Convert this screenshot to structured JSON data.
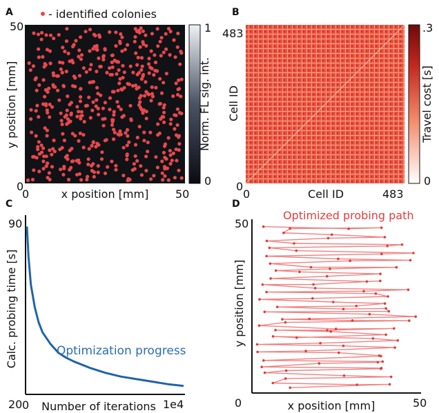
{
  "figure": {
    "panel_a": {
      "letter": "A",
      "legend": "- identified colonies",
      "xlabel": "x position [mm]",
      "ylabel": "y position [mm]",
      "x_ticks": [
        "0",
        "50"
      ],
      "y_ticks": [
        "50",
        "0"
      ],
      "colorbar_label": "Norm. FL sig. int.",
      "colorbar_ticks": [
        "1",
        "0"
      ]
    },
    "panel_b": {
      "letter": "B",
      "xlabel": "Cell ID",
      "ylabel": "Cell ID",
      "x_ticks": [
        "0",
        "483"
      ],
      "y_ticks": [
        "483",
        "0"
      ],
      "colorbar_label": "Travel cost [s]",
      "colorbar_ticks": [
        ".3",
        "0"
      ]
    },
    "panel_c": {
      "letter": "C",
      "ylabel": "Calc. probing time [s]",
      "xlabel": "Number of iterations",
      "x_ticks": [
        "0",
        "1e4"
      ],
      "y_ticks": [
        "90",
        "20"
      ],
      "annotation": "Optimization progress"
    },
    "panel_d": {
      "letter": "D",
      "annotation": "Optimized probing path",
      "xlabel": "x position [mm]",
      "ylabel": "y position [mm]",
      "x_ticks": [
        "0",
        "50"
      ],
      "y_ticks": [
        "50"
      ]
    }
  },
  "colors": {
    "colony": "#e8484c",
    "path": "#f08080",
    "path_point": "#e53935",
    "progress": "#1f63a8",
    "annotation_blue": "#2a6db3",
    "annotation_red": "#e53c3c"
  },
  "chart_data": [
    {
      "type": "scatter",
      "panel": "A",
      "series": [],
      "xlim": [
        0,
        50
      ],
      "ylim": [
        0,
        50
      ],
      "grid": false
    },
    {
      "type": "heatmap",
      "panel": "B",
      "rows": 483,
      "cols": 483,
      "zlim": [
        0,
        0.3
      ],
      "colormap": "white-to-dark-red"
    },
    {
      "type": "line",
      "panel": "C",
      "xlim": [
        0,
        10000
      ],
      "ylim": [
        20,
        90
      ],
      "x": [
        0,
        100,
        250,
        500,
        750,
        1000,
        1500,
        2000,
        2500,
        3000,
        4000,
        5000,
        6000,
        7000,
        8000,
        9000,
        10000
      ],
      "y": [
        86,
        74,
        63,
        54,
        48,
        44,
        39.5,
        36,
        34,
        32.5,
        30,
        28,
        26.5,
        25.5,
        24.5,
        23.5,
        22.8
      ]
    },
    {
      "type": "line",
      "panel": "D",
      "xlim": [
        0,
        50
      ],
      "ylim": [
        0,
        50
      ],
      "path": "colony visiting order"
    }
  ]
}
